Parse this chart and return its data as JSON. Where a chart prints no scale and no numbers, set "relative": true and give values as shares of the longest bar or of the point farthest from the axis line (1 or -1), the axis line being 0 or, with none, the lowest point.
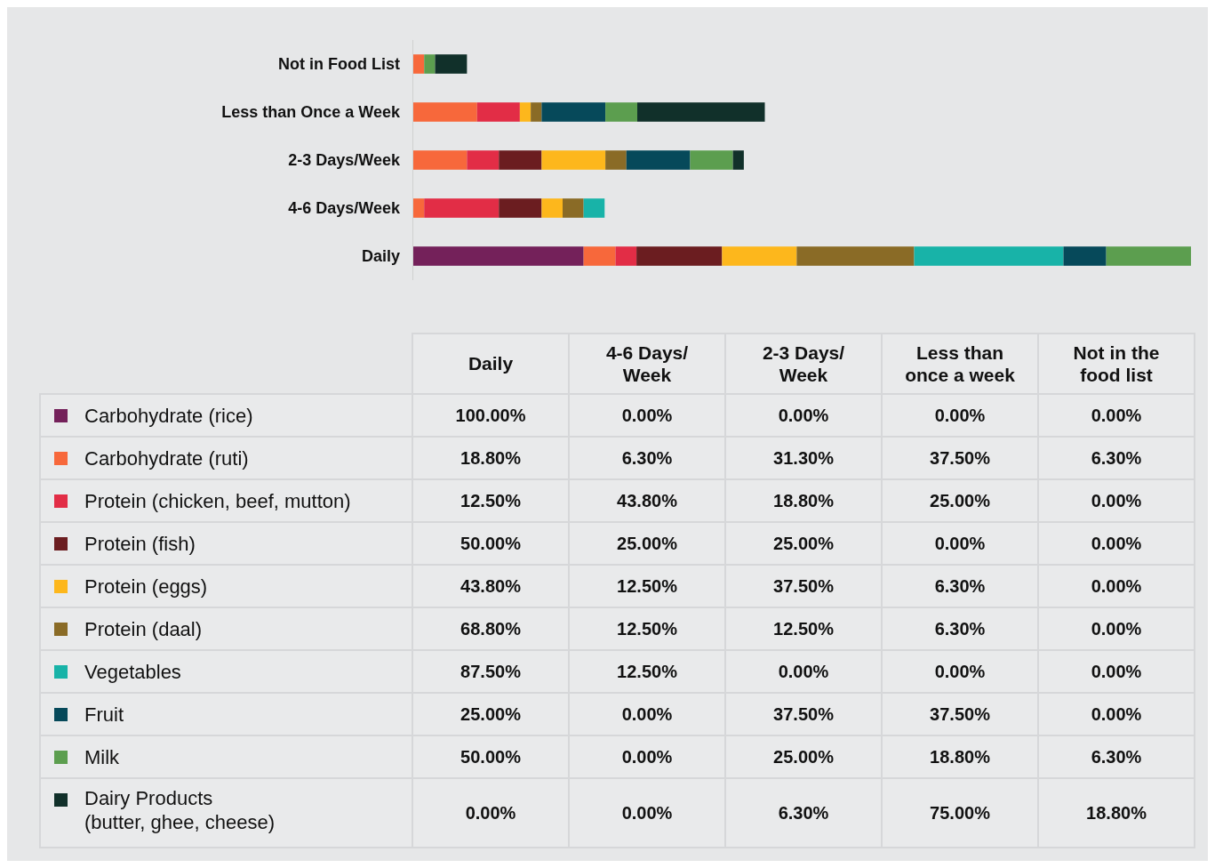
{
  "chart_data": [
    {
      "type": "bar",
      "orientation": "horizontal",
      "stacked": true,
      "relative": true,
      "tick_labels": "y",
      "categories": [
        "Not in Food List",
        "Less than Once a Week",
        "2-3 Days/Week",
        "4-6 Days/Week",
        "Daily"
      ],
      "series": [
        {
          "color": "#74215a",
          "values": [
            0,
            0,
            0,
            0,
            0.219
          ]
        },
        {
          "color": "#f7683b",
          "values": [
            0.014,
            0.082,
            0.069,
            0.014,
            0.041
          ]
        },
        {
          "color": "#e22d46",
          "values": [
            0,
            0.055,
            0.041,
            0.096,
            0.027
          ]
        },
        {
          "color": "#6b1d20",
          "values": [
            0,
            0,
            0.055,
            0.055,
            0.11
          ]
        },
        {
          "color": "#fdb71c",
          "values": [
            0,
            0.014,
            0.082,
            0.027,
            0.096
          ]
        },
        {
          "color": "#8a6b26",
          "values": [
            0,
            0.014,
            0.027,
            0.027,
            0.151
          ]
        },
        {
          "color": "#18b3a8",
          "values": [
            0,
            0,
            0,
            0.027,
            0.192
          ]
        },
        {
          "color": "#06495a",
          "values": [
            0,
            0.082,
            0.082,
            0,
            0.055
          ]
        },
        {
          "color": "#5c9e4f",
          "values": [
            0.014,
            0.041,
            0.055,
            0,
            0.109
          ]
        },
        {
          "color": "#11302a",
          "values": [
            0.041,
            0.164,
            0.014,
            0,
            0
          ]
        }
      ]
    },
    {
      "type": "heatmap",
      "categories": [
        "Daily",
        "4-6 Days/\nWeek",
        "2-3 Days/\nWeek",
        "Less than\nonce a week",
        "Not in the\nfood list"
      ],
      "y_categories": [
        "Carbohydrate (rice)",
        "Carbohydrate (ruti)",
        "Protein (chicken, beef, mutton)",
        "Protein (fish)",
        "Protein (eggs)",
        "Protein (daal)",
        "Vegetables",
        "Fruit",
        "Milk",
        "Dairy Products\n(butter, ghee, cheese)"
      ],
      "cells": [
        [
          100,
          0,
          0,
          0,
          0
        ],
        [
          18.8,
          6.3,
          31.3,
          37.5,
          6.3
        ],
        [
          12.5,
          43.8,
          18.8,
          25,
          0
        ],
        [
          50,
          25,
          25,
          0,
          0
        ],
        [
          43.8,
          12.5,
          37.5,
          6.3,
          0
        ],
        [
          68.8,
          12.5,
          12.5,
          6.3,
          0
        ],
        [
          87.5,
          12.5,
          0,
          0,
          0
        ],
        [
          25,
          0,
          37.5,
          37.5,
          0
        ],
        [
          50,
          0,
          25,
          18.8,
          6.3
        ],
        [
          0,
          0,
          6.3,
          75,
          18.8
        ]
      ],
      "cell_labels": [
        [
          "100.00%",
          "0.00%",
          "0.00%",
          "0.00%",
          "0.00%"
        ],
        [
          "18.80%",
          "6.30%",
          "31.30%",
          "37.50%",
          "6.30%"
        ],
        [
          "12.50%",
          "43.80%",
          "18.80%",
          "25.00%",
          "0.00%"
        ],
        [
          "50.00%",
          "25.00%",
          "25.00%",
          "0.00%",
          "0.00%"
        ],
        [
          "43.80%",
          "12.50%",
          "37.50%",
          "6.30%",
          "0.00%"
        ],
        [
          "68.80%",
          "12.50%",
          "12.50%",
          "6.30%",
          "0.00%"
        ],
        [
          "87.50%",
          "12.50%",
          "0.00%",
          "0.00%",
          "0.00%"
        ],
        [
          "25.00%",
          "0.00%",
          "37.50%",
          "37.50%",
          "0.00%"
        ],
        [
          "50.00%",
          "0.00%",
          "25.00%",
          "18.80%",
          "6.30%"
        ],
        [
          "0.00%",
          "0.00%",
          "6.30%",
          "75.00%",
          "18.80%"
        ]
      ]
    }
  ]
}
